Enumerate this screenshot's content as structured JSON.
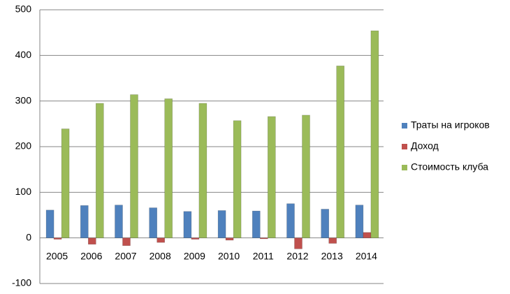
{
  "chart_data": {
    "type": "bar",
    "categories": [
      "2005",
      "2006",
      "2007",
      "2008",
      "2009",
      "2010",
      "2011",
      "2012",
      "2013",
      "2014"
    ],
    "series": [
      {
        "name": "Траты на игроков",
        "color": "#4f81bd",
        "values": [
          61,
          71,
          72,
          66,
          58,
          60,
          59,
          75,
          63,
          72
        ]
      },
      {
        "name": "Доход",
        "color": "#c0504d",
        "values": [
          -3,
          -14,
          -17,
          -10,
          -3,
          -5,
          -2,
          -24,
          -12,
          12
        ]
      },
      {
        "name": "Стоимость клуба",
        "color": "#9bbb59",
        "values": [
          239,
          295,
          314,
          305,
          295,
          257,
          266,
          269,
          377,
          454
        ]
      }
    ],
    "ylim": [
      -100,
      500
    ],
    "yticks": [
      -100,
      0,
      100,
      200,
      300,
      400,
      500
    ],
    "grid": true,
    "legend": "right"
  }
}
